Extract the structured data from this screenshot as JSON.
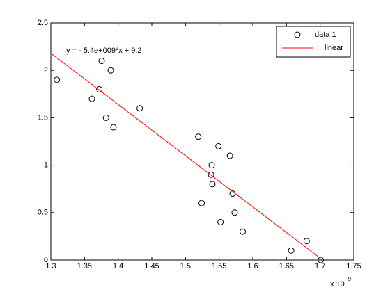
{
  "chart_data": {
    "type": "scatter",
    "annotation": "y = - 5.4e+009*x + 9.2",
    "x_multiplier": {
      "base": "x 10",
      "exponent": "-9"
    },
    "xlim": [
      1.3,
      1.75
    ],
    "xticks": [
      1.3,
      1.35,
      1.4,
      1.45,
      1.5,
      1.55,
      1.6,
      1.65,
      1.7,
      1.75
    ],
    "ylim": [
      0,
      2.5
    ],
    "yticks": [
      0,
      0.5,
      1,
      1.5,
      2,
      2.5
    ],
    "legend": "northeast",
    "series": [
      {
        "name": "data 1",
        "color": "#000000",
        "style": "markers",
        "x": [
          1.309,
          1.361,
          1.372,
          1.3755,
          1.382,
          1.389,
          1.393,
          1.432,
          1.519,
          1.549,
          1.566,
          1.539,
          1.538,
          1.54,
          1.57,
          1.524,
          1.573,
          1.552,
          1.585,
          1.68,
          1.657,
          1.701
        ],
        "values": [
          1.9,
          1.7,
          1.8,
          2.1,
          1.5,
          2.0,
          1.4,
          1.6,
          1.3,
          1.2,
          1.1,
          1.0,
          0.9,
          0.8,
          0.7,
          0.6,
          0.5,
          0.4,
          0.3,
          0.2,
          0.1,
          0.0
        ]
      },
      {
        "name": "linear",
        "color": "#ff0000",
        "style": "line",
        "x": [
          1.3,
          1.7
        ],
        "values": [
          2.18,
          0.02
        ]
      }
    ]
  }
}
